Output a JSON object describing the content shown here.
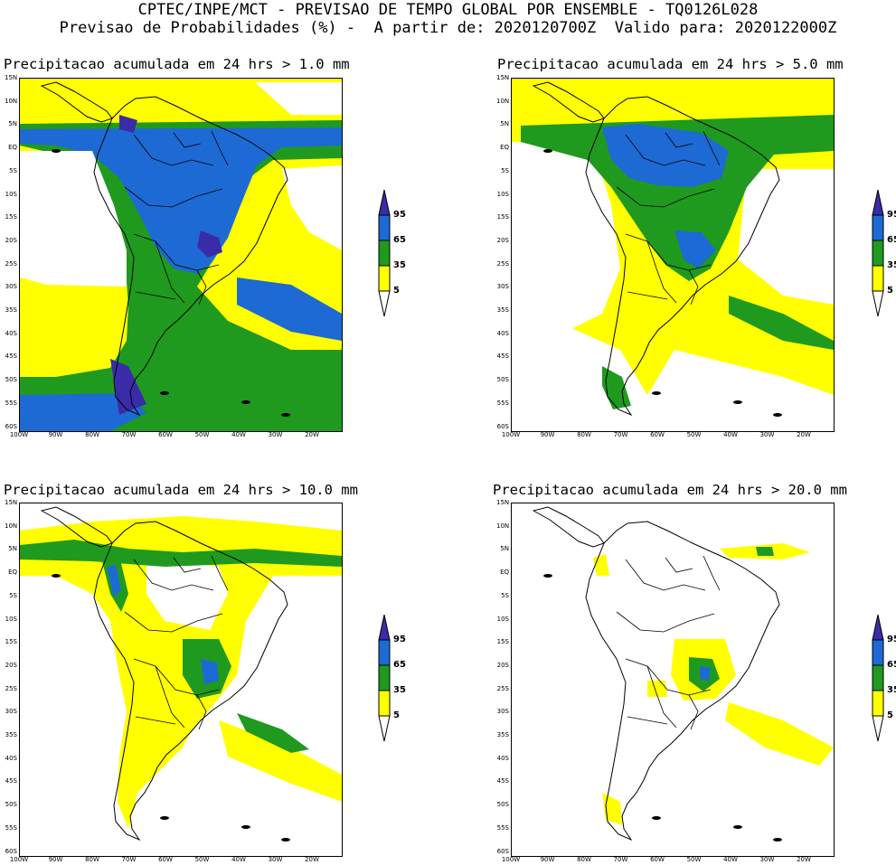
{
  "header": {
    "line1": "CPTEC/INPE/MCT - PREVISAO DE TEMPO GLOBAL POR ENSEMBLE - TQ0126L028",
    "line2": "Previsao de Probabilidades (%) -  A partir de: 2020120700Z  Valido para: 2020122000Z"
  },
  "panels": [
    {
      "title": "Precipitacao acumulada em 24 hrs > 1.0 mm",
      "threshold": 1.0
    },
    {
      "title": "Precipitacao acumulada em 24 hrs > 5.0 mm",
      "threshold": 5.0
    },
    {
      "title": "Precipitacao acumulada em 24 hrs > 10.0 mm",
      "threshold": 10.0
    },
    {
      "title": "Precipitacao acumulada em 24 hrs > 20.0 mm",
      "threshold": 20.0
    }
  ],
  "lat_labels": [
    "15N",
    "10N",
    "5N",
    "EQ",
    "5S",
    "10S",
    "15S",
    "20S",
    "25S",
    "30S",
    "35S",
    "40S",
    "45S",
    "50S",
    "55S",
    "60S"
  ],
  "lon_labels": [
    "100W",
    "90W",
    "80W",
    "70W",
    "60W",
    "50W",
    "40W",
    "30W",
    "20W"
  ],
  "colorbar": {
    "labels": [
      "95",
      "65",
      "35",
      "5"
    ],
    "colors": {
      "yellow": "#ffff00",
      "green": "#1f9a1f",
      "blue": "#1d6ad4",
      "navy": "#3a2ca8",
      "border": "#000000"
    }
  }
}
